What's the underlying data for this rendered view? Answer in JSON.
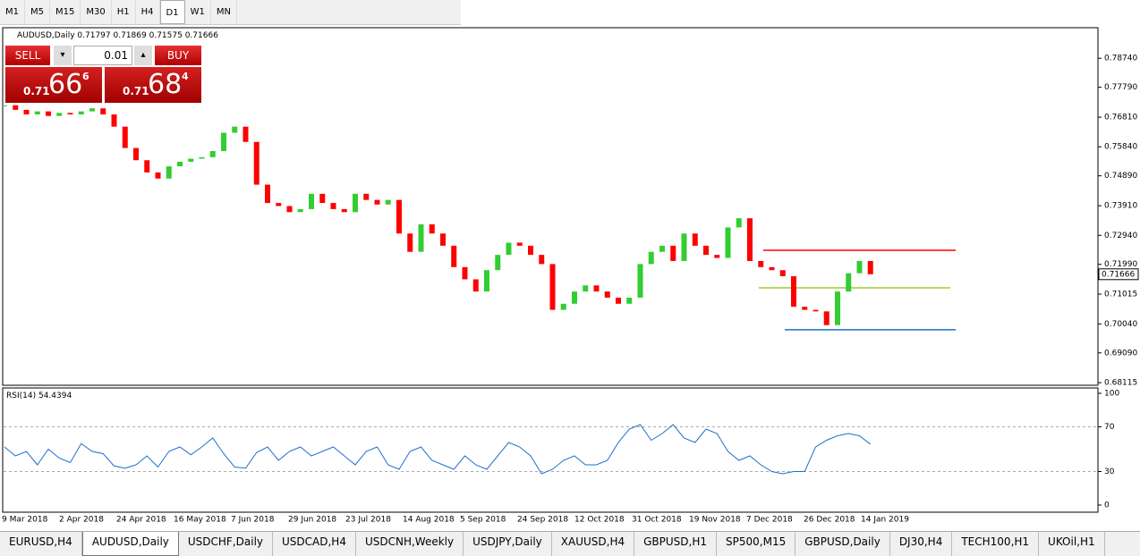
{
  "toolbar": {
    "timeframes": [
      "M1",
      "M5",
      "M15",
      "M30",
      "H1",
      "H4",
      "D1",
      "W1",
      "MN"
    ],
    "active": "D1"
  },
  "trade_panel": {
    "sell": "SELL",
    "buy": "BUY",
    "lots": "0.01",
    "sell_price": {
      "prefix": "0.71",
      "big": "66",
      "small": "6"
    },
    "buy_price": {
      "prefix": "0.71",
      "big": "68",
      "small": "4"
    }
  },
  "chart_data": [
    {
      "type": "candlestick",
      "title": "AUDUSD,Daily",
      "last_bar": {
        "open": 0.71797,
        "high": 0.71869,
        "low": 0.71575,
        "close": 0.71666
      },
      "up_color": "#32cd32",
      "down_color": "#ff0000",
      "closes": [
        0.772,
        0.7705,
        0.769,
        0.77,
        0.7685,
        0.7695,
        0.769,
        0.77,
        0.771,
        0.769,
        0.765,
        0.758,
        0.754,
        0.75,
        0.748,
        0.752,
        0.7535,
        0.7545,
        0.755,
        0.757,
        0.763,
        0.765,
        0.76,
        0.746,
        0.74,
        0.739,
        0.737,
        0.738,
        0.743,
        0.74,
        0.738,
        0.737,
        0.743,
        0.741,
        0.7395,
        0.741,
        0.73,
        0.724,
        0.733,
        0.73,
        0.726,
        0.719,
        0.715,
        0.711,
        0.718,
        0.723,
        0.727,
        0.726,
        0.723,
        0.72,
        0.705,
        0.707,
        0.711,
        0.713,
        0.711,
        0.709,
        0.707,
        0.709,
        0.72,
        0.724,
        0.726,
        0.721,
        0.73,
        0.726,
        0.723,
        0.722,
        0.732,
        0.735,
        0.721,
        0.719,
        0.718,
        0.716,
        0.706,
        0.705,
        0.7045,
        0.7,
        0.711,
        0.717,
        0.721,
        0.71666
      ],
      "levels": [
        {
          "value": 0.7245,
          "color": "#ff0000"
        },
        {
          "value": 0.7122,
          "color": "#9acd32"
        },
        {
          "value": 0.6985,
          "color": "#1e6fd0"
        }
      ],
      "ylim": [
        0.6803,
        0.7974
      ],
      "yticks": [
        {
          "value": 0.7874,
          "label": "0.78740"
        },
        {
          "value": 0.7779,
          "label": "0.77790"
        },
        {
          "value": 0.7681,
          "label": "0.76810"
        },
        {
          "value": 0.7584,
          "label": "0.75840"
        },
        {
          "value": 0.7489,
          "label": "0.74890"
        },
        {
          "value": 0.7391,
          "label": "0.73910"
        },
        {
          "value": 0.7294,
          "label": "0.72940"
        },
        {
          "value": 0.7199,
          "label": "0.71990"
        },
        {
          "value": 0.71015,
          "label": "0.71015"
        },
        {
          "value": 0.7004,
          "label": "0.70040"
        },
        {
          "value": 0.6909,
          "label": "0.69090"
        },
        {
          "value": 0.68115,
          "label": "0.68115"
        }
      ],
      "x_labels": [
        "9 Mar 2018",
        "2 Apr 2018",
        "24 Apr 2018",
        "16 May 2018",
        "7 Jun 2018",
        "29 Jun 2018",
        "23 Jul 2018",
        "14 Aug 2018",
        "5 Sep 2018",
        "24 Sep 2018",
        "12 Oct 2018",
        "31 Oct 2018",
        "19 Nov 2018",
        "7 Dec 2018",
        "26 Dec 2018",
        "14 Jan 2019"
      ]
    },
    {
      "type": "line",
      "title": "RSI(14)",
      "color": "#1e6fd0",
      "values": [
        52,
        44,
        48,
        36,
        50,
        42,
        38,
        55,
        48,
        46,
        35,
        33,
        36,
        44,
        34,
        48,
        52,
        45,
        52,
        60,
        46,
        34,
        33,
        47,
        52,
        40,
        48,
        52,
        44,
        48,
        52,
        44,
        36,
        48,
        52,
        36,
        32,
        48,
        52,
        40,
        36,
        32,
        44,
        36,
        32,
        44,
        56,
        52,
        44,
        28,
        32,
        40,
        44,
        36,
        36,
        40,
        56,
        68,
        72,
        58,
        64,
        72,
        60,
        56,
        68,
        64,
        48,
        40,
        44,
        36,
        30,
        28,
        30,
        30,
        52,
        58,
        62,
        64,
        62,
        54.4394
      ],
      "ylim": [
        -6.4,
        104.8
      ],
      "yticks": [
        100,
        70,
        30,
        0
      ],
      "levels": [
        70,
        30
      ]
    }
  ],
  "tabs": [
    "EURUSD,H4",
    "AUDUSD,Daily",
    "USDCHF,Daily",
    "USDCAD,H4",
    "USDCNH,Weekly",
    "USDJPY,Daily",
    "XAUUSD,H4",
    "GBPUSD,H1",
    "SP500,M15",
    "GBPUSD,Daily",
    "DJ30,H4",
    "TECH100,H1",
    "UKOil,H1"
  ],
  "active_tab": "AUDUSD,Daily"
}
